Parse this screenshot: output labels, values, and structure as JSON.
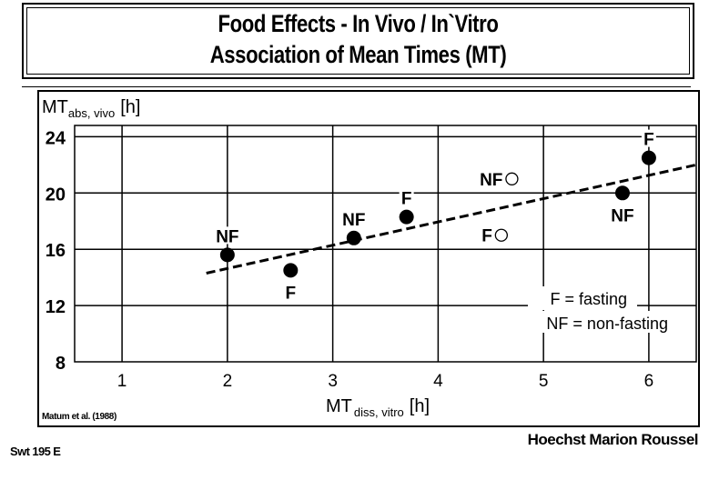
{
  "header": {
    "title_line1": "Food Effects - In Vivo / In`Vitro",
    "title_line2": "Association of Mean Times (MT)"
  },
  "chart_data": {
    "type": "scatter",
    "title": "Food Effects - In Vivo / In`Vitro Association of Mean Times (MT)",
    "ylabel": {
      "main": "MT",
      "sub": "abs, vivo",
      "unit": "[h]"
    },
    "xlabel": {
      "main": "MT",
      "sub": "diss, vitro",
      "unit": "[h]"
    },
    "xlim": [
      0.55,
      6.45
    ],
    "ylim": [
      8,
      24.8
    ],
    "x_ticks": [
      "1",
      "2",
      "3",
      "4",
      "5",
      "6"
    ],
    "x_tick_values": [
      1,
      2,
      3,
      4,
      5,
      6
    ],
    "y_ticks": [
      "8",
      "12",
      "16",
      "20",
      "24"
    ],
    "y_tick_values": [
      8,
      12,
      16,
      20,
      24
    ],
    "grid": true,
    "points": [
      {
        "label": "NF",
        "x": 2.0,
        "y": 15.6,
        "filled": true,
        "label_pos": "above"
      },
      {
        "label": "F",
        "x": 2.6,
        "y": 14.5,
        "filled": true,
        "label_pos": "below"
      },
      {
        "label": "NF",
        "x": 3.2,
        "y": 16.8,
        "filled": true,
        "label_pos": "above"
      },
      {
        "label": "F",
        "x": 3.7,
        "y": 18.3,
        "filled": true,
        "label_pos": "above"
      },
      {
        "label": "NF",
        "x": 4.7,
        "y": 21.0,
        "filled": false,
        "label_pos": "left"
      },
      {
        "label": "F",
        "x": 4.6,
        "y": 17.0,
        "filled": false,
        "label_pos": "left"
      },
      {
        "label": "NF",
        "x": 5.75,
        "y": 20.0,
        "filled": true,
        "label_pos": "below"
      },
      {
        "label": "F",
        "x": 6.0,
        "y": 22.5,
        "filled": true,
        "label_pos": "above"
      }
    ],
    "trendline": {
      "style": "dashed",
      "x": [
        1.8,
        6.45
      ],
      "y": [
        14.3,
        22.0
      ]
    },
    "legend": {
      "position": "bottom-right",
      "entries": [
        "F = fasting",
        "NF = non-fasting"
      ]
    },
    "source": "Matum et al. (1988)"
  },
  "footer": {
    "code": "Swt 195 E",
    "company": "Hoechst Marion Roussel"
  }
}
